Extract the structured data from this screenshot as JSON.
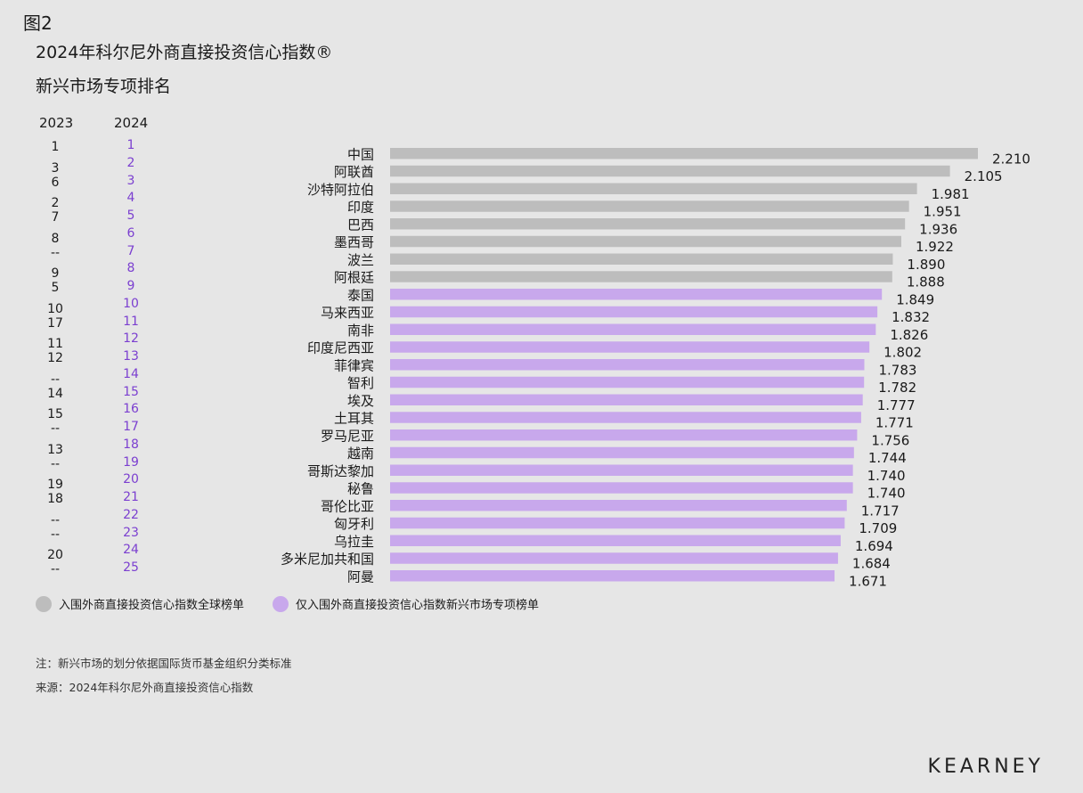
{
  "figure_label": "图2",
  "title": "2024年科尔尼外商直接投资信心指数®",
  "subtitle": "新兴市场专项排名",
  "rank_headers": {
    "y2023": "2023",
    "y2024": "2024"
  },
  "ranks_2023": [
    "1",
    "3",
    "6",
    "2",
    "7",
    "8",
    "--",
    "9",
    "5",
    "10",
    "17",
    "11",
    "12",
    "--",
    "14",
    "15",
    "--",
    "13",
    "--",
    "19",
    "18",
    "--",
    "--",
    "20",
    "--"
  ],
  "ranks_2024": [
    "1",
    "2",
    "3",
    "4",
    "5",
    "6",
    "7",
    "8",
    "9",
    "10",
    "11",
    "12",
    "13",
    "14",
    "15",
    "16",
    "17",
    "18",
    "19",
    "20",
    "21",
    "22",
    "23",
    "24",
    "25"
  ],
  "colors": {
    "global": "#bdbdbd",
    "emerging": "#c8a8ec",
    "rank2024": "#7b3fd0",
    "background": "#e6e6e6"
  },
  "chart_data": {
    "type": "bar",
    "orientation": "horizontal",
    "categories": [
      "中国",
      "阿联酋",
      "沙特阿拉伯",
      "印度",
      "巴西",
      "墨西哥",
      "波兰",
      "阿根廷",
      "泰国",
      "马来西亚",
      "南非",
      "印度尼西亚",
      "菲律宾",
      "智利",
      "埃及",
      "土耳其",
      "罗马尼亚",
      "越南",
      "哥斯达黎加",
      "秘鲁",
      "哥伦比亚",
      "匈牙利",
      "乌拉圭",
      "多米尼加共和国",
      "阿曼"
    ],
    "values": [
      2.21,
      2.105,
      1.981,
      1.951,
      1.936,
      1.922,
      1.89,
      1.888,
      1.849,
      1.832,
      1.826,
      1.802,
      1.783,
      1.782,
      1.777,
      1.771,
      1.756,
      1.744,
      1.74,
      1.74,
      1.717,
      1.709,
      1.694,
      1.684,
      1.671
    ],
    "value_labels": [
      "2.210",
      "2.105",
      "1.981",
      "1.951",
      "1.936",
      "1.922",
      "1.890",
      "1.888",
      "1.849",
      "1.832",
      "1.826",
      "1.802",
      "1.783",
      "1.782",
      "1.777",
      "1.771",
      "1.756",
      "1.744",
      "1.740",
      "1.740",
      "1.717",
      "1.709",
      "1.694",
      "1.684",
      "1.671"
    ],
    "groups": [
      "global",
      "global",
      "global",
      "global",
      "global",
      "global",
      "global",
      "global",
      "emerging",
      "emerging",
      "emerging",
      "emerging",
      "emerging",
      "emerging",
      "emerging",
      "emerging",
      "emerging",
      "emerging",
      "emerging",
      "emerging",
      "emerging",
      "emerging",
      "emerging",
      "emerging",
      "emerging"
    ],
    "xlim": [
      0,
      2.21
    ],
    "legend": [
      {
        "key": "global",
        "label": "入围外商直接投资信心指数全球榜单"
      },
      {
        "key": "emerging",
        "label": "仅入围外商直接投资信心指数新兴市场专项榜单"
      }
    ],
    "legend_position": "bottom-left",
    "grid": false
  },
  "notes": {
    "note": "注：新兴市场的划分依据国际货币基金组织分类标准",
    "source": "来源：2024年科尔尼外商直接投资信心指数"
  },
  "brand": "KEARNEY"
}
